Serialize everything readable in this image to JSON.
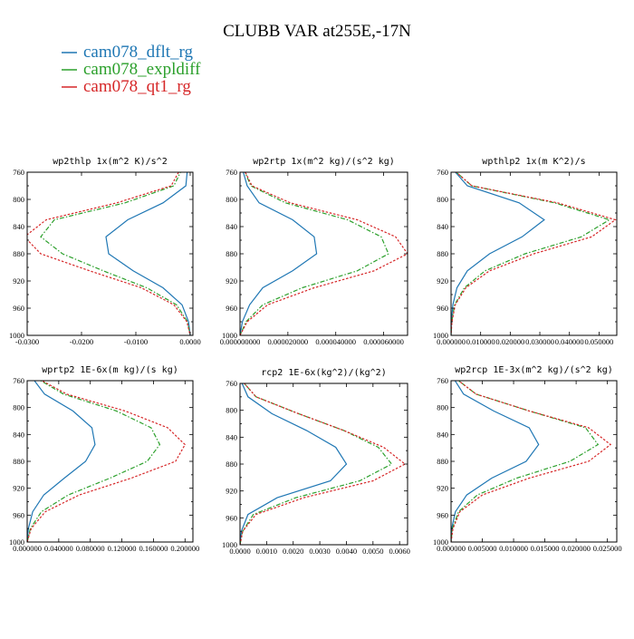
{
  "figure_title": "CLUBB VAR at255E,-17N",
  "colors": {
    "dflt": "#1f77b4",
    "expl": "#2ca02c",
    "qt1": "#d62728"
  },
  "legend": [
    {
      "label": "cam078_dflt_rg",
      "color": "#1f77b4"
    },
    {
      "label": "cam078_expldiff",
      "color": "#2ca02c"
    },
    {
      "label": "cam078_qt1_rg",
      "color": "#d62728"
    }
  ],
  "chart_data": [
    {
      "type": "line",
      "title": "wp2thlp  1x(m^2 K)/s^2",
      "xlim": [
        -0.03,
        0.0005
      ],
      "ylim": [
        760,
        1000
      ],
      "y_reversed": true,
      "xticks": [
        -0.03,
        -0.02,
        -0.01,
        0.0
      ],
      "xtick_labels": [
        "-0.0300",
        "-0.0200",
        "-0.0100",
        "0.0000"
      ],
      "yticks": [
        760,
        800,
        840,
        880,
        920,
        960,
        1000
      ],
      "ytick_labels": [
        "760",
        "800",
        "840",
        "880",
        "920",
        "960",
        "1000"
      ],
      "y": [
        755,
        780,
        805,
        830,
        855,
        880,
        905,
        930,
        955,
        980,
        1000
      ],
      "series": [
        {
          "name": "cam078_dflt_rg",
          "x": [
            -0.0005,
            -0.0008,
            -0.005,
            -0.0115,
            -0.0155,
            -0.015,
            -0.0105,
            -0.005,
            -0.0015,
            -0.0003,
            0.0
          ]
        },
        {
          "name": "cam078_expldiff",
          "x": [
            -0.0015,
            -0.003,
            -0.012,
            -0.025,
            -0.0275,
            -0.0235,
            -0.016,
            -0.008,
            -0.0025,
            -0.0005,
            0.0
          ]
        },
        {
          "name": "cam078_qt1_rg",
          "x": [
            -0.0018,
            -0.0035,
            -0.0135,
            -0.0265,
            -0.0305,
            -0.0275,
            -0.0185,
            -0.009,
            -0.003,
            -0.0006,
            0.0
          ]
        }
      ]
    },
    {
      "type": "line",
      "title": "wp2rtp  1x(m^2 kg)/(s^2 kg)",
      "xlim": [
        0,
        7e-05
      ],
      "ylim": [
        760,
        1000
      ],
      "y_reversed": true,
      "xticks": [
        0,
        2e-05,
        4e-05,
        6e-05
      ],
      "xtick_labels": [
        "0.000000000",
        "0.000020000",
        "0.000040000",
        "0.000060000"
      ],
      "yticks": [
        760,
        800,
        840,
        880,
        920,
        960,
        1000
      ],
      "ytick_labels": [
        "760",
        "800",
        "840",
        "880",
        "920",
        "960",
        "1000"
      ],
      "y": [
        755,
        780,
        805,
        830,
        855,
        880,
        905,
        930,
        955,
        980,
        1000
      ],
      "series": [
        {
          "name": "cam078_dflt_rg",
          "x": [
            1e-06,
            3e-06,
            8e-06,
            2.2e-05,
            3.1e-05,
            3.2e-05,
            2.2e-05,
            9.5e-06,
            4e-06,
            1e-06,
            0.0
          ]
        },
        {
          "name": "cam078_expldiff",
          "x": [
            1.5e-06,
            4.5e-06,
            1.9e-05,
            4.5e-05,
            5.9e-05,
            6.2e-05,
            4.9e-05,
            2.6e-05,
            9.5e-06,
            2.5e-06,
            0.0
          ]
        },
        {
          "name": "cam078_qt1_rg",
          "x": [
            1.5e-06,
            5e-06,
            2.1e-05,
            4.9e-05,
            6.5e-05,
            7e-05,
            5.6e-05,
            3.1e-05,
            1.15e-05,
            3e-06,
            0.0
          ]
        }
      ]
    },
    {
      "type": "line",
      "title": "wpthlp2  1x(m K^2)/s",
      "xlim": [
        0,
        0.056
      ],
      "ylim": [
        760,
        1000
      ],
      "y_reversed": true,
      "xticks": [
        0,
        0.01,
        0.02,
        0.03,
        0.04,
        0.05
      ],
      "xtick_labels": [
        "0.000000",
        "0.010000",
        "0.020000",
        "0.030000",
        "0.040000",
        "0.050000"
      ],
      "yticks": [
        760,
        800,
        840,
        880,
        920,
        960,
        1000
      ],
      "ytick_labels": [
        "760",
        "800",
        "840",
        "880",
        "920",
        "960",
        "1000"
      ],
      "y": [
        755,
        780,
        805,
        830,
        855,
        880,
        905,
        930,
        955,
        980,
        1000
      ],
      "series": [
        {
          "name": "cam078_dflt_rg",
          "x": [
            0.0005,
            0.0055,
            0.023,
            0.0315,
            0.024,
            0.013,
            0.0055,
            0.002,
            0.0006,
            0.0001,
            0.0
          ]
        },
        {
          "name": "cam078_expldiff",
          "x": [
            0.0005,
            0.007,
            0.035,
            0.0535,
            0.044,
            0.025,
            0.0115,
            0.0045,
            0.0012,
            0.0002,
            0.0
          ]
        },
        {
          "name": "cam078_qt1_rg",
          "x": [
            0.0005,
            0.007,
            0.036,
            0.0555,
            0.0475,
            0.028,
            0.013,
            0.005,
            0.0014,
            0.0003,
            0.0
          ]
        }
      ]
    },
    {
      "type": "line",
      "title": "wprtp2  1E-6x(m kg)/(s kg)",
      "xlim": [
        0,
        0.21
      ],
      "ylim": [
        760,
        1000
      ],
      "y_reversed": true,
      "xticks": [
        0,
        0.04,
        0.08,
        0.12,
        0.16,
        0.2
      ],
      "xtick_labels": [
        "0.000000",
        "0.040000",
        "0.080000",
        "0.120000",
        "0.160000",
        "0.200000"
      ],
      "yticks": [
        760,
        800,
        840,
        880,
        920,
        960,
        1000
      ],
      "ytick_labels": [
        "760",
        "800",
        "840",
        "880",
        "920",
        "960",
        "1000"
      ],
      "y": [
        755,
        780,
        805,
        830,
        855,
        880,
        905,
        930,
        955,
        980,
        1000
      ],
      "series": [
        {
          "name": "cam078_dflt_rg",
          "x": [
            0.006,
            0.022,
            0.058,
            0.082,
            0.086,
            0.074,
            0.047,
            0.021,
            0.007,
            0.0015,
            0.0
          ]
        },
        {
          "name": "cam078_expldiff",
          "x": [
            0.01,
            0.046,
            0.113,
            0.157,
            0.168,
            0.152,
            0.105,
            0.052,
            0.018,
            0.004,
            0.0
          ]
        },
        {
          "name": "cam078_qt1_rg",
          "x": [
            0.011,
            0.05,
            0.124,
            0.178,
            0.2,
            0.188,
            0.132,
            0.066,
            0.023,
            0.005,
            0.0
          ]
        }
      ]
    },
    {
      "type": "line",
      "title": "rcp2  1E-6x(kg^2)/(kg^2)",
      "xlim": [
        0,
        0.0063
      ],
      "ylim": [
        760,
        1000
      ],
      "y_reversed": true,
      "xticks": [
        0,
        0.001,
        0.002,
        0.003,
        0.004,
        0.005,
        0.006
      ],
      "xtick_labels": [
        "0.0000",
        "0.0010",
        "0.0020",
        "0.0030",
        "0.0040",
        "0.0050",
        "0.0060"
      ],
      "yticks": [
        760,
        800,
        840,
        880,
        920,
        960,
        1000
      ],
      "ytick_labels": [
        "760",
        "800",
        "840",
        "880",
        "920",
        "960",
        "1000"
      ],
      "y": [
        755,
        780,
        805,
        830,
        855,
        880,
        905,
        930,
        955,
        980,
        1000
      ],
      "series": [
        {
          "name": "cam078_dflt_rg",
          "x": [
            2e-05,
            0.0003,
            0.0012,
            0.0025,
            0.0036,
            0.004,
            0.0034,
            0.0014,
            0.0003,
            5e-05,
            0.0
          ]
        },
        {
          "name": "cam078_expldiff",
          "x": [
            5e-05,
            0.0006,
            0.0022,
            0.0039,
            0.0052,
            0.0057,
            0.0045,
            0.0021,
            0.0005,
            0.0001,
            0.0
          ]
        },
        {
          "name": "cam078_qt1_rg",
          "x": [
            5e-05,
            0.0006,
            0.0022,
            0.0039,
            0.0054,
            0.0062,
            0.005,
            0.0024,
            0.0006,
            0.0001,
            0.0
          ]
        }
      ]
    },
    {
      "type": "line",
      "title": "wp2rcp  1E-3x(m^2 kg)/(s^2 kg)",
      "xlim": [
        0,
        0.0265
      ],
      "ylim": [
        760,
        1000
      ],
      "y_reversed": true,
      "xticks": [
        0,
        0.005,
        0.01,
        0.015,
        0.02,
        0.025
      ],
      "xtick_labels": [
        "0.000000",
        "0.005000",
        "0.010000",
        "0.015000",
        "0.020000",
        "0.025000"
      ],
      "yticks": [
        760,
        800,
        840,
        880,
        920,
        960,
        1000
      ],
      "ytick_labels": [
        "760",
        "800",
        "840",
        "880",
        "920",
        "960",
        "1000"
      ],
      "y": [
        755,
        780,
        805,
        830,
        855,
        880,
        905,
        930,
        955,
        980,
        1000
      ],
      "series": [
        {
          "name": "cam078_dflt_rg",
          "x": [
            0.0003,
            0.002,
            0.0068,
            0.0125,
            0.014,
            0.012,
            0.0065,
            0.0025,
            0.0007,
            0.0001,
            0.0
          ]
        },
        {
          "name": "cam078_expldiff",
          "x": [
            0.0005,
            0.004,
            0.0125,
            0.0215,
            0.0235,
            0.019,
            0.0105,
            0.0042,
            0.0012,
            0.0002,
            0.0
          ]
        },
        {
          "name": "cam078_qt1_rg",
          "x": [
            0.0005,
            0.004,
            0.0125,
            0.022,
            0.0255,
            0.022,
            0.0125,
            0.005,
            0.0014,
            0.0003,
            0.0
          ]
        }
      ]
    }
  ]
}
